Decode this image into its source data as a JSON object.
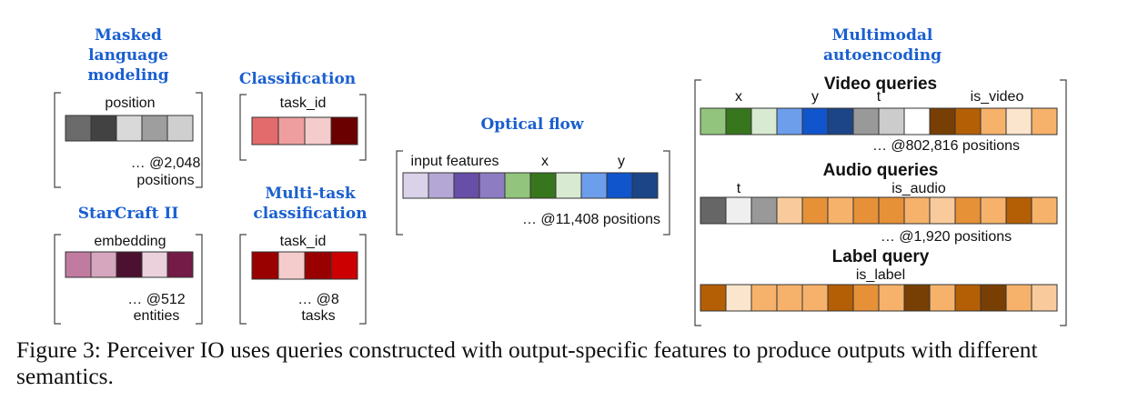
{
  "panels": [
    {
      "id": "mlm",
      "title": [
        "Masked",
        "language",
        "modeling"
      ],
      "label": "position",
      "cells": [
        "#6b6b6b",
        "#424242",
        "#d9d9d9",
        "#9e9e9e",
        "#cfcfcf"
      ],
      "count": [
        "… @2,048",
        "positions"
      ]
    },
    {
      "id": "cls",
      "title": [
        "Classification"
      ],
      "label": "task_id",
      "cells": [
        "#e46b6b",
        "#ee9e9e",
        "#f5cccc",
        "#6b0000"
      ],
      "count": []
    },
    {
      "id": "sc2",
      "title": [
        "StarCraft II"
      ],
      "label": "embedding",
      "cells": [
        "#c27ba0",
        "#d5a6bd",
        "#4c1130",
        "#ead1dc",
        "#741b47"
      ],
      "count": [
        "… @512",
        "entities"
      ]
    },
    {
      "id": "mtc",
      "title": [
        "Multi-task",
        "classification"
      ],
      "label": "task_id",
      "cells": [
        "#990000",
        "#f4cccc",
        "#990000",
        "#cc0000"
      ],
      "count": [
        "… @8",
        "tasks"
      ]
    },
    {
      "id": "flow",
      "title": [
        "Optical flow"
      ],
      "labels": [
        "input features",
        "x",
        "y"
      ],
      "cells": [
        "#d9d2e9",
        "#b4a7d6",
        "#674ea7",
        "#8e7cc3",
        "#93c47d",
        "#38761d",
        "#d9ead3",
        "#6d9eeb",
        "#1155cc",
        "#1c4587"
      ],
      "count": [
        "… @11,408 positions"
      ]
    }
  ],
  "multimodal": {
    "title": [
      "Multimodal",
      "autoencoding"
    ],
    "video": {
      "header": "Video queries",
      "labels": [
        "x",
        "y",
        "t",
        "is_video"
      ],
      "cells": [
        "#93c47d",
        "#38761d",
        "#d9ead3",
        "#6d9eeb",
        "#1155cc",
        "#1c4587",
        "#999999",
        "#cccccc",
        "#ffffff",
        "#783f04",
        "#b45f06",
        "#f6b26b",
        "#fce5cd",
        "#f6b26b"
      ],
      "count": "… @802,816 positions"
    },
    "audio": {
      "header": "Audio queries",
      "labels": [
        "t",
        "is_audio"
      ],
      "cells": [
        "#666666",
        "#efefef",
        "#999999",
        "#f9cb9c",
        "#e69138",
        "#f6b26b",
        "#e69138",
        "#e69138",
        "#f6b26b",
        "#f9cb9c",
        "#e69138",
        "#f6b26b",
        "#b45f06",
        "#f6b26b"
      ],
      "count": "… @1,920 positions"
    },
    "label": {
      "header": "Label query",
      "labels": [
        "is_label"
      ],
      "cells": [
        "#b45f06",
        "#fce5cd",
        "#f6b26b",
        "#f6b26b",
        "#f6b26b",
        "#b45f06",
        "#e69138",
        "#f6b26b",
        "#783f04",
        "#f6b26b",
        "#b45f06",
        "#783f04",
        "#f6b26b",
        "#f9cb9c"
      ]
    }
  },
  "caption": "Figure 3: Perceiver IO uses queries constructed with output-specific features to produce outputs with different semantics."
}
